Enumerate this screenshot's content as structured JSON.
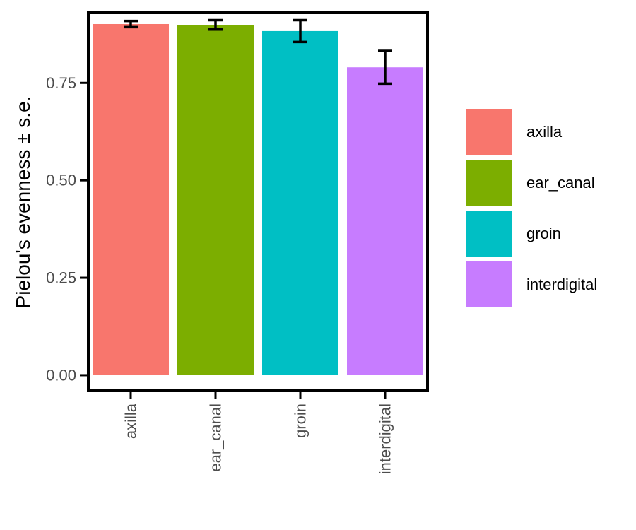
{
  "chart_data": {
    "type": "bar",
    "title": "",
    "xlabel": "",
    "ylabel": "Pielou's evenness  ± s.e.",
    "categories": [
      "axilla",
      "ear_canal",
      "groin",
      "interdigital"
    ],
    "values": [
      0.901,
      0.899,
      0.883,
      0.79
    ],
    "errors": [
      0.008,
      0.012,
      0.028,
      0.042
    ],
    "colors": [
      "#F8766D",
      "#7CAE00",
      "#00BFC4",
      "#C77CFF"
    ],
    "ylim": [
      -0.04,
      0.93
    ],
    "yticks": [
      0.0,
      0.25,
      0.5,
      0.75
    ],
    "ytick_labels": [
      "0.00",
      "0.25",
      "0.50",
      "0.75"
    ],
    "grid": false,
    "legend": {
      "position": "right",
      "entries": [
        "axilla",
        "ear_canal",
        "groin",
        "interdigital"
      ]
    }
  }
}
